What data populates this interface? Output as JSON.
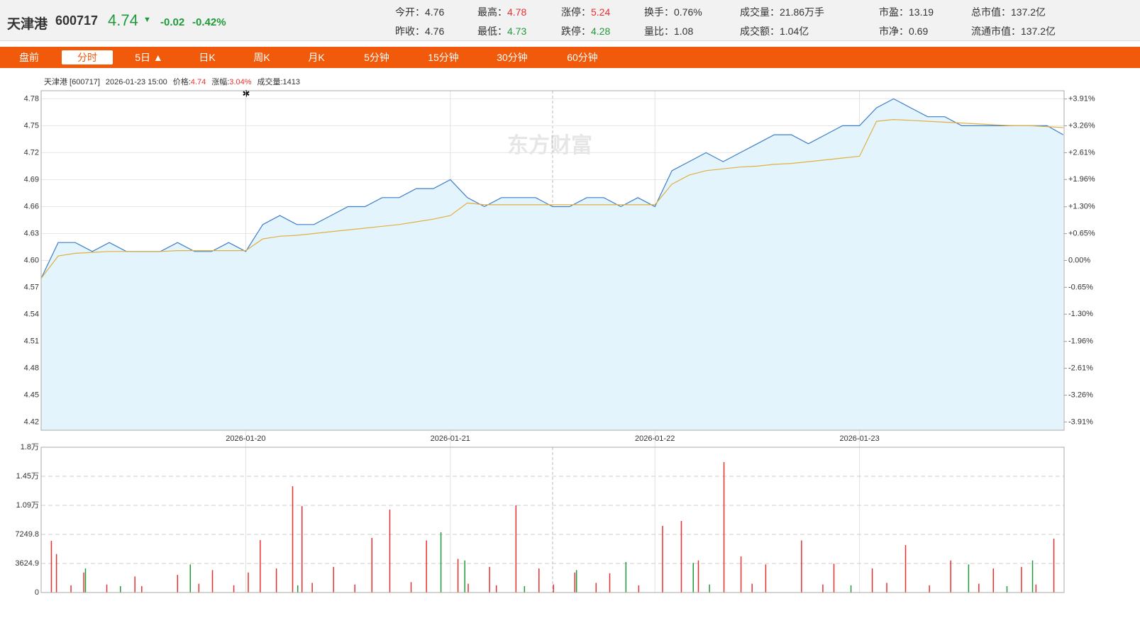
{
  "header": {
    "name": "天津港",
    "code": "600717",
    "price": "4.74",
    "change": "-0.02",
    "change_pct": "-0.42%",
    "stats": [
      {
        "label": "今开：",
        "value": "4.76",
        "tone": "n"
      },
      {
        "label": "昨收：",
        "value": "4.76",
        "tone": "n"
      },
      {
        "label": "最高：",
        "value": "4.78",
        "tone": "up"
      },
      {
        "label": "最低：",
        "value": "4.73",
        "tone": "down"
      },
      {
        "label": "涨停：",
        "value": "5.24",
        "tone": "up"
      },
      {
        "label": "跌停：",
        "value": "4.28",
        "tone": "down"
      },
      {
        "label": "换手：",
        "value": "0.76%",
        "tone": "n"
      },
      {
        "label": "量比：",
        "value": "1.08",
        "tone": "n"
      },
      {
        "label": "成交量：",
        "value": "21.86万手",
        "tone": "n"
      },
      {
        "label": "成交额：",
        "value": "1.04亿",
        "tone": "n"
      },
      {
        "label": "市盈：",
        "value": "13.19",
        "tone": "n"
      },
      {
        "label": "市净：",
        "value": "0.69",
        "tone": "n"
      },
      {
        "label": "总市值：",
        "value": "137.2亿",
        "tone": "n"
      },
      {
        "label": "流通市值：",
        "value": "137.2亿",
        "tone": "n"
      }
    ]
  },
  "tabs": [
    "盘前",
    "分时",
    "5日 ▲",
    "日K",
    "周K",
    "月K",
    "5分钟",
    "15分钟",
    "30分钟",
    "60分钟"
  ],
  "active_tab": 1,
  "info": {
    "name": "天津港 [600717]",
    "time": "2026-01-23 15:00",
    "price_label": "价格:",
    "price": "4.74",
    "change_label": "涨幅:",
    "change": "3.04%",
    "volume_label": "成交量:",
    "volume": "1413"
  },
  "watermark": "东方财富",
  "chart_data": [
    {
      "type": "line",
      "x": [
        0,
        20,
        40,
        60,
        80,
        100,
        120,
        140,
        160,
        180,
        200,
        220,
        240,
        260,
        280,
        300,
        320,
        340,
        360,
        380,
        400,
        420,
        440,
        460,
        480,
        500,
        520,
        540,
        560,
        580,
        600,
        620,
        640,
        660,
        680,
        700,
        720,
        740,
        760,
        780,
        800,
        820,
        840,
        860,
        880,
        900,
        920,
        940,
        960,
        980,
        1000,
        1020,
        1040,
        1060,
        1080,
        1100,
        1120,
        1140,
        1160,
        1180,
        1199
      ],
      "series": [
        {
          "color": "#3d7cc9",
          "area_color": "#e4f4fc",
          "values": [
            4.58,
            4.62,
            4.62,
            4.61,
            4.62,
            4.61,
            4.61,
            4.61,
            4.62,
            4.61,
            4.61,
            4.62,
            4.61,
            4.64,
            4.65,
            4.64,
            4.64,
            4.65,
            4.66,
            4.66,
            4.67,
            4.67,
            4.68,
            4.68,
            4.69,
            4.67,
            4.66,
            4.67,
            4.67,
            4.67,
            4.66,
            4.66,
            4.67,
            4.67,
            4.66,
            4.67,
            4.66,
            4.7,
            4.71,
            4.72,
            4.71,
            4.72,
            4.73,
            4.74,
            4.74,
            4.73,
            4.74,
            4.75,
            4.75,
            4.77,
            4.78,
            4.77,
            4.76,
            4.76,
            4.75,
            4.75,
            4.75,
            4.75,
            4.75,
            4.75,
            4.74
          ]
        },
        {
          "color": "#e0b040",
          "values": [
            4.58,
            4.605,
            4.608,
            4.609,
            4.61,
            4.61,
            4.61,
            4.61,
            4.611,
            4.611,
            4.611,
            4.611,
            4.611,
            4.624,
            4.627,
            4.628,
            4.63,
            4.632,
            4.634,
            4.636,
            4.638,
            4.64,
            4.643,
            4.646,
            4.65,
            4.664,
            4.662,
            4.662,
            4.662,
            4.662,
            4.662,
            4.662,
            4.662,
            4.662,
            4.662,
            4.662,
            4.662,
            4.685,
            4.695,
            4.7,
            4.702,
            4.704,
            4.705,
            4.707,
            4.708,
            4.71,
            4.712,
            4.714,
            4.716,
            4.755,
            4.757,
            4.756,
            4.755,
            4.754,
            4.753,
            4.752,
            4.751,
            4.75,
            4.75,
            4.749,
            4.748
          ]
        }
      ],
      "xlim": [
        0,
        1200
      ],
      "xticks": [
        {
          "value": 240,
          "label": "2026-01-20"
        },
        {
          "value": 480,
          "label": "2026-01-21"
        },
        {
          "value": 720,
          "label": "2026-01-22"
        },
        {
          "value": 960,
          "label": "2026-01-23"
        }
      ],
      "ylim": [
        4.411,
        4.789
      ],
      "yticks": [
        4.78,
        4.75,
        4.72,
        4.69,
        4.66,
        4.63,
        {
          "value": 4.6,
          "label": "4.60"
        },
        4.57,
        4.54,
        4.51,
        4.48,
        4.45,
        4.42
      ],
      "y2lim": [
        -4.11,
        4.11
      ],
      "y2ticks": [
        {
          "value": 3.91,
          "label": "+3.91%"
        },
        {
          "value": 3.26,
          "label": "+3.26%"
        },
        {
          "value": 2.61,
          "label": "+2.61%"
        },
        {
          "value": 1.96,
          "label": "+1.96%"
        },
        {
          "value": 1.3,
          "label": "+1.30%"
        },
        {
          "value": 0.65,
          "label": "+0.65%"
        },
        {
          "value": 0,
          "label": "0.00%"
        },
        {
          "value": -0.65,
          "label": "-0.65%"
        },
        {
          "value": -1.3,
          "label": "-1.30%"
        },
        {
          "value": -1.96,
          "label": "-1.96%"
        },
        {
          "value": -2.61,
          "label": "-2.61%"
        },
        {
          "value": -3.26,
          "label": "-3.26%"
        },
        {
          "value": -3.91,
          "label": "-3.91%"
        }
      ],
      "grid": true
    },
    {
      "type": "bar",
      "series": [
        {
          "color": "#e8302f",
          "x": [
            12,
            18,
            35,
            50,
            77,
            110,
            118,
            160,
            185,
            201,
            226,
            243,
            257,
            276,
            295,
            306,
            318,
            343,
            368,
            388,
            409,
            434,
            452,
            489,
            501,
            526,
            534,
            557,
            584,
            601,
            626,
            651,
            667,
            701,
            729,
            751,
            771,
            801,
            821,
            834,
            850,
            892,
            917,
            930,
            975,
            992,
            1014,
            1042,
            1067,
            1100,
            1117,
            1150,
            1167,
            1188
          ],
          "values": [
            6450,
            4800,
            900,
            2500,
            1000,
            2000,
            800,
            2200,
            1100,
            2800,
            900,
            2500,
            6540,
            3000,
            13260,
            10790,
            1200,
            3200,
            1000,
            6810,
            10345,
            1300,
            6500,
            4200,
            1100,
            3200,
            900,
            10875,
            3000,
            1000,
            2500,
            1200,
            2400,
            900,
            8310,
            8930,
            4000,
            16270,
            4500,
            1100,
            3500,
            6500,
            1000,
            3600,
            3000,
            1200,
            5920,
            900,
            4000,
            1100,
            3000,
            3200,
            1000,
            6720
          ]
        },
        {
          "color": "#1f9a3a",
          "x": [
            52,
            93,
            175,
            301,
            469,
            497,
            567,
            628,
            686,
            765,
            784,
            950,
            1088,
            1133,
            1163
          ],
          "values": [
            3000,
            800,
            3500,
            900,
            7515,
            4000,
            800,
            2800,
            3800,
            3700,
            1000,
            900,
            3500,
            800,
            4000
          ]
        }
      ],
      "xlim": [
        0,
        1200
      ],
      "ylim": [
        0,
        18124.5
      ],
      "yticks": [
        0,
        3624.9,
        7249.8,
        {
          "value": 10874.7,
          "label": "1.09万"
        },
        {
          "value": 14499.6,
          "label": "1.45万"
        },
        {
          "value": 18124.5,
          "label": "1.8万"
        }
      ],
      "grid": true
    }
  ]
}
